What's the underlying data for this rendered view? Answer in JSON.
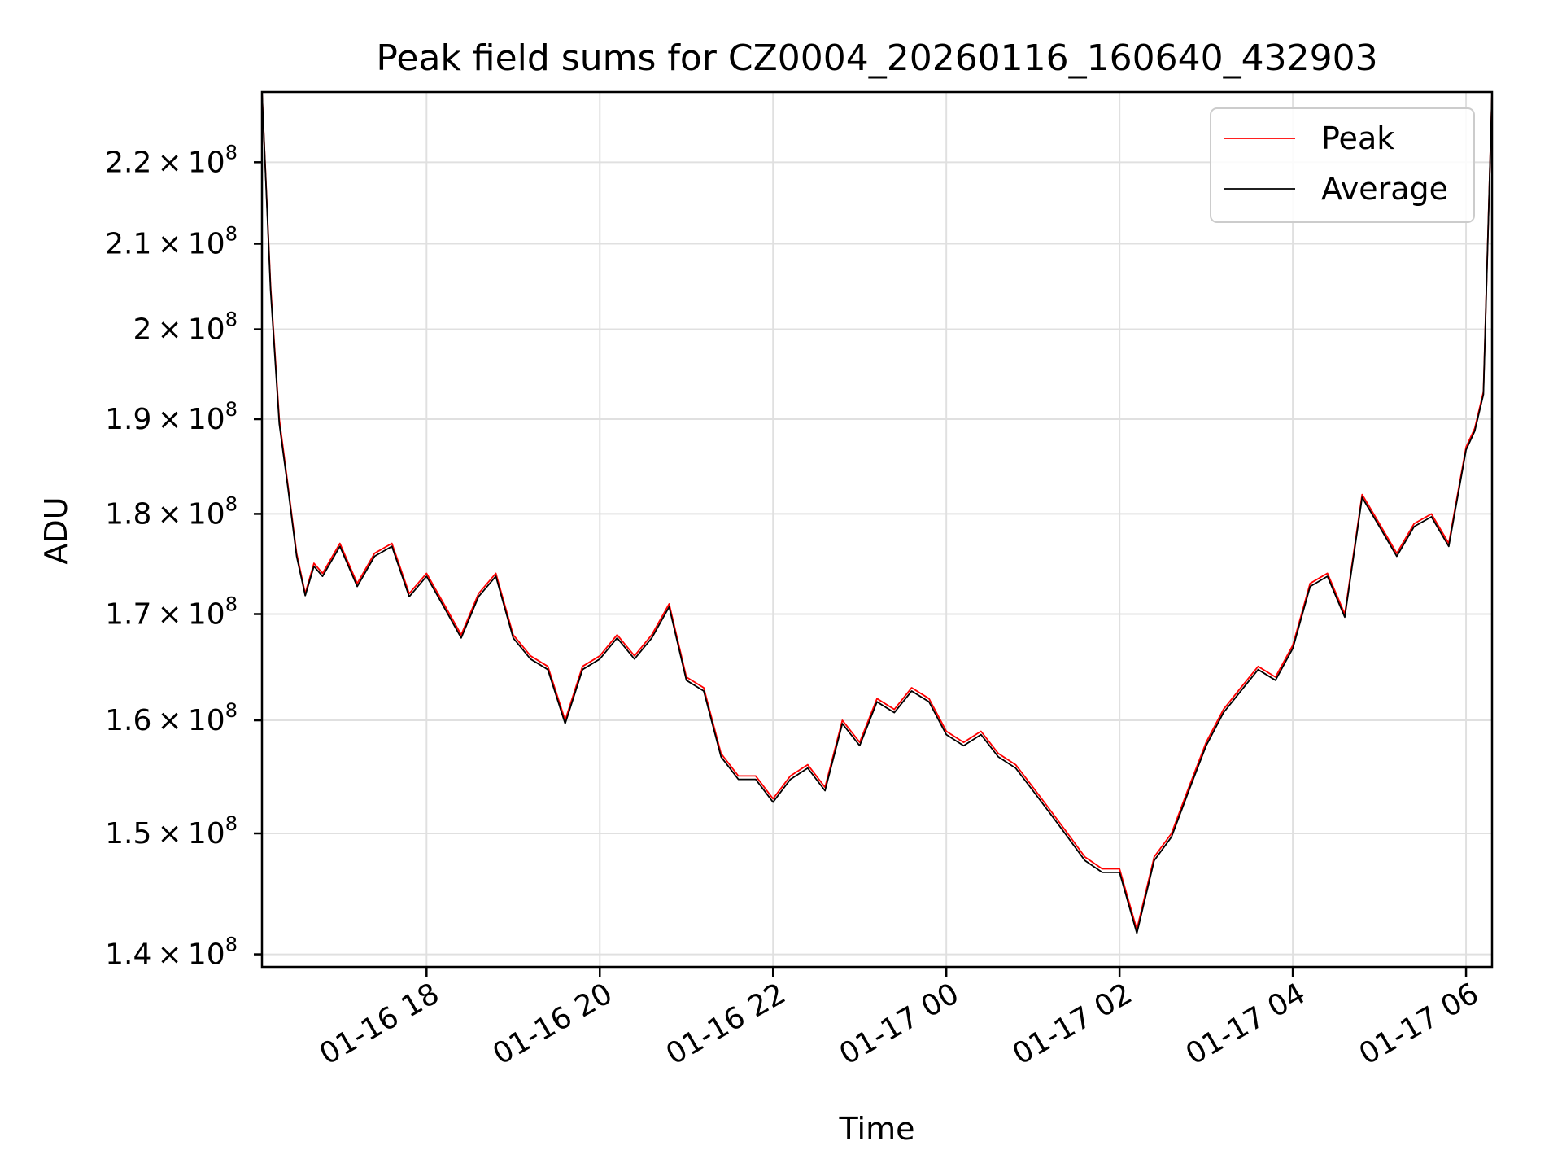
{
  "chart_data": {
    "type": "line",
    "title": "Peak field sums for CZ0004_20260116_160640_432903",
    "xlabel": "Time",
    "ylabel": "ADU",
    "x_ticks": [
      "01-16 18",
      "01-16 20",
      "01-16 22",
      "01-17 00",
      "01-17 02",
      "01-17 04",
      "01-17 06"
    ],
    "y_ticks": [
      {
        "mant": "1.4",
        "exp": "8"
      },
      {
        "mant": "1.5",
        "exp": "8"
      },
      {
        "mant": "1.6",
        "exp": "8"
      },
      {
        "mant": "1.7",
        "exp": "8"
      },
      {
        "mant": "1.8",
        "exp": "8"
      },
      {
        "mant": "1.9",
        "exp": "8"
      },
      {
        "mant": "2",
        "exp": "8"
      },
      {
        "mant": "2.1",
        "exp": "8"
      },
      {
        "mant": "2.2",
        "exp": "8"
      }
    ],
    "y_scale": "log",
    "ylim": [
      139000000,
      229000000
    ],
    "xlim": [
      "2026-01-16 16:06",
      "2026-01-17 06:18"
    ],
    "grid": true,
    "legend_position": "top-right",
    "series": [
      {
        "name": "Peak",
        "color": "#ff0000",
        "x": [
          "2026-01-16 16:06",
          "2026-01-16 16:12",
          "2026-01-16 16:18",
          "2026-01-16 16:24",
          "2026-01-16 16:30",
          "2026-01-16 16:36",
          "2026-01-16 16:42",
          "2026-01-16 16:48",
          "2026-01-16 17:00",
          "2026-01-16 17:12",
          "2026-01-16 17:24",
          "2026-01-16 17:36",
          "2026-01-16 17:48",
          "2026-01-16 18:00",
          "2026-01-16 18:12",
          "2026-01-16 18:24",
          "2026-01-16 18:36",
          "2026-01-16 18:48",
          "2026-01-16 19:00",
          "2026-01-16 19:12",
          "2026-01-16 19:24",
          "2026-01-16 19:36",
          "2026-01-16 19:48",
          "2026-01-16 20:00",
          "2026-01-16 20:12",
          "2026-01-16 20:24",
          "2026-01-16 20:36",
          "2026-01-16 20:48",
          "2026-01-16 21:00",
          "2026-01-16 21:12",
          "2026-01-16 21:24",
          "2026-01-16 21:36",
          "2026-01-16 21:48",
          "2026-01-16 22:00",
          "2026-01-16 22:12",
          "2026-01-16 22:24",
          "2026-01-16 22:36",
          "2026-01-16 22:48",
          "2026-01-16 23:00",
          "2026-01-16 23:12",
          "2026-01-16 23:24",
          "2026-01-16 23:36",
          "2026-01-16 23:48",
          "2026-01-17 00:00",
          "2026-01-17 00:12",
          "2026-01-17 00:24",
          "2026-01-17 00:36",
          "2026-01-17 00:48",
          "2026-01-17 01:00",
          "2026-01-17 01:12",
          "2026-01-17 01:24",
          "2026-01-17 01:36",
          "2026-01-17 01:48",
          "2026-01-17 02:00",
          "2026-01-17 02:12",
          "2026-01-17 02:24",
          "2026-01-17 02:36",
          "2026-01-17 02:48",
          "2026-01-17 03:00",
          "2026-01-17 03:12",
          "2026-01-17 03:24",
          "2026-01-17 03:36",
          "2026-01-17 03:48",
          "2026-01-17 04:00",
          "2026-01-17 04:12",
          "2026-01-17 04:24",
          "2026-01-17 04:36",
          "2026-01-17 04:48",
          "2026-01-17 05:00",
          "2026-01-17 05:12",
          "2026-01-17 05:24",
          "2026-01-17 05:36",
          "2026-01-17 05:48",
          "2026-01-17 06:00",
          "2026-01-17 06:06",
          "2026-01-17 06:12",
          "2026-01-17 06:18"
        ],
        "y": [
          229000000,
          205000000,
          190000000,
          183000000,
          176000000,
          172000000,
          175000000,
          174000000,
          177000000,
          173000000,
          176000000,
          177000000,
          172000000,
          174000000,
          171000000,
          168000000,
          172000000,
          174000000,
          168000000,
          166000000,
          165000000,
          160000000,
          165000000,
          166000000,
          168000000,
          166000000,
          168000000,
          171000000,
          164000000,
          163000000,
          157000000,
          155000000,
          155000000,
          153000000,
          155000000,
          156000000,
          154000000,
          160000000,
          158000000,
          162000000,
          161000000,
          163000000,
          162000000,
          159000000,
          158000000,
          159000000,
          157000000,
          156000000,
          154000000,
          152000000,
          150000000,
          148000000,
          147000000,
          147000000,
          142000000,
          148000000,
          150000000,
          154000000,
          158000000,
          161000000,
          163000000,
          165000000,
          164000000,
          167000000,
          173000000,
          174000000,
          170000000,
          182000000,
          179000000,
          176000000,
          179000000,
          180000000,
          177000000,
          187000000,
          189000000,
          193000000,
          229000000
        ]
      },
      {
        "name": "Average",
        "color": "#000000",
        "x": [
          "2026-01-16 16:06",
          "2026-01-16 16:12",
          "2026-01-16 16:18",
          "2026-01-16 16:24",
          "2026-01-16 16:30",
          "2026-01-16 16:36",
          "2026-01-16 16:42",
          "2026-01-16 16:48",
          "2026-01-16 17:00",
          "2026-01-16 17:12",
          "2026-01-16 17:24",
          "2026-01-16 17:36",
          "2026-01-16 17:48",
          "2026-01-16 18:00",
          "2026-01-16 18:12",
          "2026-01-16 18:24",
          "2026-01-16 18:36",
          "2026-01-16 18:48",
          "2026-01-16 19:00",
          "2026-01-16 19:12",
          "2026-01-16 19:24",
          "2026-01-16 19:36",
          "2026-01-16 19:48",
          "2026-01-16 20:00",
          "2026-01-16 20:12",
          "2026-01-16 20:24",
          "2026-01-16 20:36",
          "2026-01-16 20:48",
          "2026-01-16 21:00",
          "2026-01-16 21:12",
          "2026-01-16 21:24",
          "2026-01-16 21:36",
          "2026-01-16 21:48",
          "2026-01-16 22:00",
          "2026-01-16 22:12",
          "2026-01-16 22:24",
          "2026-01-16 22:36",
          "2026-01-16 22:48",
          "2026-01-16 23:00",
          "2026-01-16 23:12",
          "2026-01-16 23:24",
          "2026-01-16 23:36",
          "2026-01-16 23:48",
          "2026-01-17 00:00",
          "2026-01-17 00:12",
          "2026-01-17 00:24",
          "2026-01-17 00:36",
          "2026-01-17 00:48",
          "2026-01-17 01:00",
          "2026-01-17 01:12",
          "2026-01-17 01:24",
          "2026-01-17 01:36",
          "2026-01-17 01:48",
          "2026-01-17 02:00",
          "2026-01-17 02:12",
          "2026-01-17 02:24",
          "2026-01-17 02:36",
          "2026-01-17 02:48",
          "2026-01-17 03:00",
          "2026-01-17 03:12",
          "2026-01-17 03:24",
          "2026-01-17 03:36",
          "2026-01-17 03:48",
          "2026-01-17 04:00",
          "2026-01-17 04:12",
          "2026-01-17 04:24",
          "2026-01-17 04:36",
          "2026-01-17 04:48",
          "2026-01-17 05:00",
          "2026-01-17 05:12",
          "2026-01-17 05:24",
          "2026-01-17 05:36",
          "2026-01-17 05:48",
          "2026-01-17 06:00",
          "2026-01-17 06:06",
          "2026-01-17 06:12",
          "2026-01-17 06:18"
        ],
        "y": [
          229000000,
          204500000,
          189500000,
          182700000,
          175700000,
          171800000,
          174700000,
          173700000,
          176700000,
          172700000,
          175700000,
          176700000,
          171700000,
          173700000,
          170700000,
          167700000,
          171700000,
          173700000,
          167700000,
          165700000,
          164700000,
          159700000,
          164700000,
          165700000,
          167700000,
          165700000,
          167700000,
          170700000,
          163700000,
          162700000,
          156700000,
          154700000,
          154700000,
          152700000,
          154700000,
          155700000,
          153700000,
          159700000,
          157700000,
          161700000,
          160700000,
          162700000,
          161700000,
          158700000,
          157700000,
          158700000,
          156700000,
          155700000,
          153700000,
          151700000,
          149700000,
          147700000,
          146700000,
          146700000,
          141700000,
          147700000,
          149700000,
          153700000,
          157700000,
          160700000,
          162700000,
          164700000,
          163700000,
          166700000,
          172700000,
          173700000,
          169700000,
          181700000,
          178700000,
          175700000,
          178700000,
          179700000,
          176700000,
          186700000,
          188700000,
          192700000,
          229000000
        ]
      }
    ]
  }
}
